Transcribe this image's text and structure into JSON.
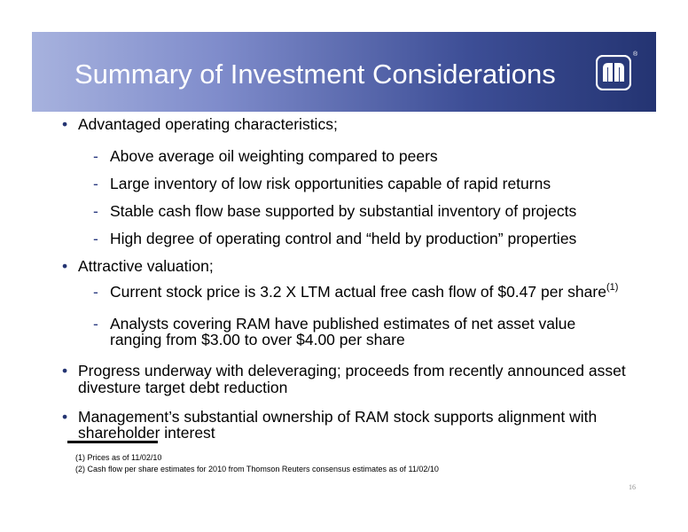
{
  "header": {
    "title": "Summary of Investment Considerations",
    "logo_icon": "company-logo-icon",
    "gradient_start": "#a7b2de",
    "gradient_end": "#243472"
  },
  "bullets": [
    {
      "text": "Advantaged operating characteristics;",
      "subs": [
        "Above average oil weighting compared to peers",
        "Large inventory of low risk opportunities capable of rapid returns",
        "Stable cash flow base supported by substantial inventory of projects",
        "High degree of operating control and “held by production” properties"
      ]
    },
    {
      "text": "Attractive valuation;",
      "subs": [
        "Current stock price is 3.2 X LTM actual free cash flow of $0.47 per share",
        "Analysts covering  RAM have published estimates of net asset value",
        "ranging from $3.00 to over $4.00 per share"
      ],
      "sub_footnote": "(1)"
    },
    {
      "text_line1": "Progress underway with deleveraging; proceeds from recently announced asset",
      "text_line2": "divesture target debt reduction"
    },
    {
      "text_line1": "Management’s substantial ownership of RAM stock supports alignment with",
      "text_line2": "shareholder interest"
    }
  ],
  "footnotes": [
    "(1) Prices as of 11/02/10",
    "(2) Cash flow per share estimates for 2010 from Thomson Reuters consensus estimates as of 11/02/10"
  ],
  "page_number": "16",
  "glyphs": {
    "bullet": "•",
    "dash": "-",
    "registered": "®"
  }
}
